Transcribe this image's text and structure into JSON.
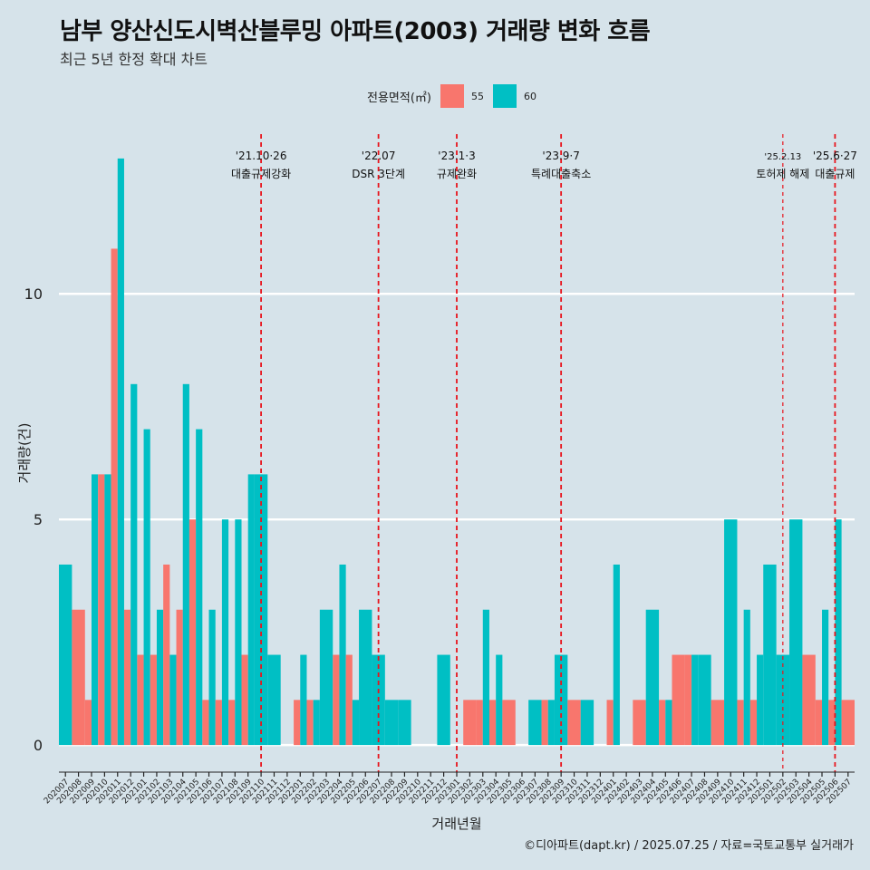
{
  "title": "남부 양산신도시벽산블루밍 아파트(2003) 거래량 변화 흐름",
  "subtitle": "최근 5년 한정 확대 차트",
  "caption": "©디아파트(dapt.kr) / 2025.07.25 / 자료=국토교통부 실거래가",
  "legend": {
    "title": "전용면적(㎡)",
    "items": [
      {
        "label": "55",
        "color": "#f8766d"
      },
      {
        "label": "60",
        "color": "#00bfc4"
      }
    ]
  },
  "chart_data": {
    "type": "bar",
    "xlabel": "거래년월",
    "ylabel": "거래량(건)",
    "ylim": [
      -0.6,
      13.6
    ],
    "yticks": [
      0,
      5,
      10
    ],
    "categories": [
      "202007",
      "202008",
      "202009",
      "202010",
      "202011",
      "202012",
      "202101",
      "202102",
      "202103",
      "202104",
      "202105",
      "202106",
      "202107",
      "202108",
      "202109",
      "202110",
      "202111",
      "202112",
      "202201",
      "202202",
      "202203",
      "202204",
      "202205",
      "202206",
      "202207",
      "202208",
      "202209",
      "202210",
      "202211",
      "202212",
      "202301",
      "202302",
      "202303",
      "202304",
      "202305",
      "202306",
      "202307",
      "202308",
      "202309",
      "202310",
      "202311",
      "202312",
      "202401",
      "202402",
      "202403",
      "202404",
      "202405",
      "202406",
      "202407",
      "202408",
      "202409",
      "202410",
      "202411",
      "202412",
      "202501",
      "202502",
      "202503",
      "202504",
      "202505",
      "202506",
      "202507"
    ],
    "series": [
      {
        "name": "55",
        "color": "#f8766d",
        "values": [
          null,
          3,
          1,
          6,
          11,
          3,
          2,
          2,
          4,
          3,
          5,
          1,
          1,
          1,
          2,
          null,
          null,
          null,
          1,
          1,
          null,
          2,
          2,
          null,
          null,
          null,
          null,
          null,
          null,
          null,
          null,
          1,
          1,
          1,
          1,
          null,
          null,
          1,
          null,
          1,
          null,
          null,
          1,
          null,
          1,
          null,
          1,
          2,
          2,
          null,
          1,
          null,
          1,
          1,
          null,
          null,
          null,
          2,
          1,
          1,
          1
        ]
      },
      {
        "name": "60",
        "color": "#00bfc4",
        "values": [
          4,
          null,
          6,
          6,
          13,
          8,
          7,
          3,
          2,
          8,
          7,
          3,
          5,
          5,
          6,
          6,
          2,
          null,
          2,
          1,
          3,
          4,
          1,
          3,
          2,
          1,
          1,
          null,
          null,
          2,
          null,
          null,
          3,
          2,
          null,
          null,
          1,
          1,
          2,
          null,
          1,
          null,
          4,
          null,
          null,
          3,
          1,
          null,
          2,
          2,
          null,
          5,
          3,
          2,
          4,
          2,
          5,
          null,
          3,
          5,
          null
        ]
      }
    ],
    "events": [
      {
        "index": 15.5,
        "date": "'21.10·26",
        "label": "대출규제강화",
        "style": "thick"
      },
      {
        "index": 24.5,
        "date": "'22.07",
        "label": "DSR 3단계",
        "style": "thick"
      },
      {
        "index": 30.5,
        "date": "'23.1·3",
        "label": "규제완화",
        "style": "thick"
      },
      {
        "index": 38.5,
        "date": "'23.9·7",
        "label": "특례대출축소",
        "style": "thick"
      },
      {
        "index": 55.5,
        "date": "'25.2.13",
        "label": "토허제 해제",
        "style": "thin"
      },
      {
        "index": 59.5,
        "date": "'25.6·27",
        "label": "대출규제",
        "style": "thick"
      }
    ]
  }
}
